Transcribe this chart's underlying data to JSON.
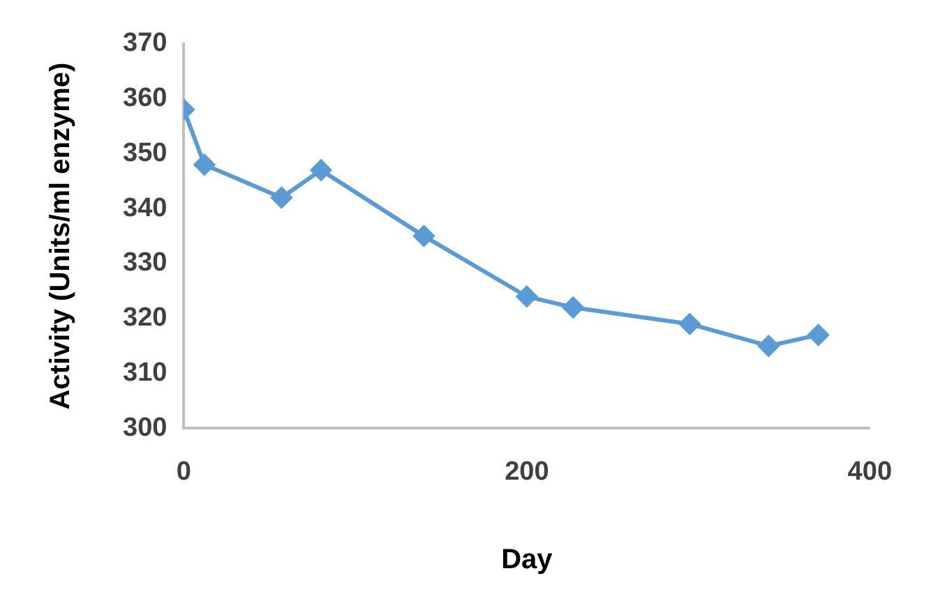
{
  "chart_data": {
    "type": "line",
    "xlabel": "Day",
    "ylabel": "Activity (Units/ml enzyme)",
    "x": [
      0,
      12,
      57,
      80,
      140,
      200,
      227,
      295,
      341,
      370
    ],
    "series": [
      {
        "color": "#5b9bd5",
        "values": [
          358,
          348,
          342,
          347,
          335,
          324,
          322,
          319,
          315,
          317
        ]
      }
    ],
    "xlim": [
      0,
      400
    ],
    "xticks": [
      0,
      200,
      400
    ],
    "ylim": [
      300,
      370
    ],
    "yticks": [
      300,
      310,
      320,
      330,
      340,
      350,
      360,
      370
    ],
    "marker": "diamond",
    "grid": false,
    "legend": false
  }
}
